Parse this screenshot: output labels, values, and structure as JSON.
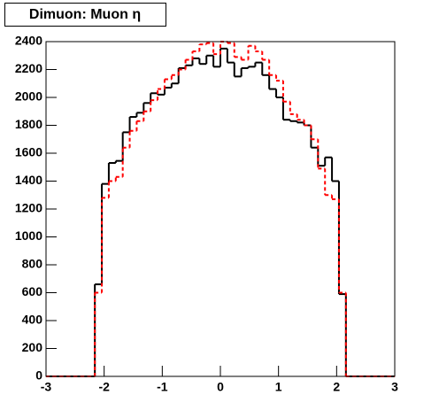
{
  "chart_data": {
    "type": "histogram",
    "title": "Dimuon: Muon η",
    "bins": [
      -3,
      -2.88,
      -2.76,
      -2.64,
      -2.52,
      -2.4,
      -2.28,
      -2.16,
      -2.04,
      -1.92,
      -1.8,
      -1.68,
      -1.56,
      -1.44,
      -1.32,
      -1.2,
      -1.08,
      -0.96,
      -0.84,
      -0.72,
      -0.6,
      -0.48,
      -0.36,
      -0.24,
      -0.12,
      0,
      0.12,
      0.24,
      0.36,
      0.48,
      0.6,
      0.72,
      0.84,
      0.96,
      1.08,
      1.2,
      1.32,
      1.44,
      1.56,
      1.68,
      1.8,
      1.92,
      2.04,
      2.16,
      2.28,
      2.4,
      2.52,
      2.64,
      2.76,
      2.88,
      3
    ],
    "series": [
      {
        "color": "#000000",
        "dash": "solid",
        "values": [
          0,
          0,
          0,
          0,
          0,
          0,
          0,
          660,
          1380,
          1530,
          1545,
          1750,
          1860,
          1890,
          1960,
          2030,
          2020,
          2070,
          2100,
          2210,
          2230,
          2280,
          2240,
          2300,
          2220,
          2350,
          2250,
          2150,
          2210,
          2220,
          2250,
          2160,
          2060,
          2000,
          1840,
          1830,
          1820,
          1800,
          1640,
          1510,
          1570,
          1400,
          590,
          0,
          0,
          0,
          0,
          0,
          0,
          0
        ]
      },
      {
        "color": "#ff0000",
        "dash": "dashed",
        "values": [
          0,
          0,
          0,
          0,
          0,
          0,
          0,
          600,
          1280,
          1400,
          1430,
          1640,
          1760,
          1830,
          1900,
          1980,
          2060,
          2130,
          2160,
          2200,
          2270,
          2330,
          2380,
          2390,
          2310,
          2400,
          2390,
          2290,
          2270,
          2370,
          2330,
          2270,
          2160,
          2120,
          1970,
          1880,
          1840,
          1800,
          1700,
          1490,
          1300,
          1270,
          600,
          0,
          0,
          0,
          0,
          0,
          0,
          0
        ]
      }
    ],
    "xlim": [
      -3,
      3
    ],
    "ylim": [
      0,
      2400
    ],
    "xticks": [
      -3,
      -2,
      -1,
      0,
      1,
      2,
      3
    ],
    "yticks": [
      0,
      200,
      400,
      600,
      800,
      1000,
      1200,
      1400,
      1600,
      1800,
      2000,
      2200,
      2400
    ]
  }
}
